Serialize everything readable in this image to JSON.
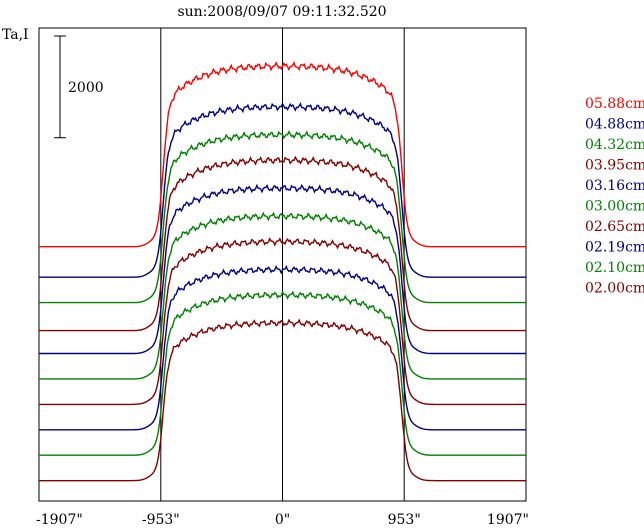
{
  "chart_data": {
    "type": "line",
    "title": "sun:2008/09/07 09:11:32.520",
    "ylabel": "Ta,I",
    "scale_bar_label": "2000",
    "x_ticks": [
      "-1907\"",
      "-953\"",
      "0\"",
      "953\"",
      "1907\""
    ],
    "x_tick_values": [
      -1907,
      -953,
      0,
      953,
      1907
    ],
    "xlim": [
      -1907,
      1907
    ],
    "vertical_lines": [
      -953,
      0,
      953
    ],
    "grid": false,
    "legend_position": "right",
    "series": [
      {
        "name": "05.88cm",
        "color": "#ff0000",
        "baseline": 3600,
        "disk": 7150
      },
      {
        "name": "04.88cm",
        "color": "#000080",
        "baseline": 3000,
        "disk": 6350
      },
      {
        "name": "04.32cm",
        "color": "#008000",
        "baseline": 2500,
        "disk": 5800
      },
      {
        "name": "03.95cm",
        "color": "#800000",
        "baseline": 1950,
        "disk": 5300
      },
      {
        "name": "03.16cm",
        "color": "#000080",
        "baseline": 1500,
        "disk": 4750
      },
      {
        "name": "03.00cm",
        "color": "#008000",
        "baseline": 1000,
        "disk": 4200
      },
      {
        "name": "02.65cm",
        "color": "#800000",
        "baseline": 500,
        "disk": 3700
      },
      {
        "name": "02.19cm",
        "color": "#000080",
        "baseline": 0,
        "disk": 3150
      },
      {
        "name": "02.10cm",
        "color": "#008000",
        "baseline": -500,
        "disk": 2650
      },
      {
        "name": "02.00cm",
        "color": "#800000",
        "baseline": -1000,
        "disk": 2100
      }
    ],
    "ylim": [
      -1400,
      7900
    ]
  }
}
